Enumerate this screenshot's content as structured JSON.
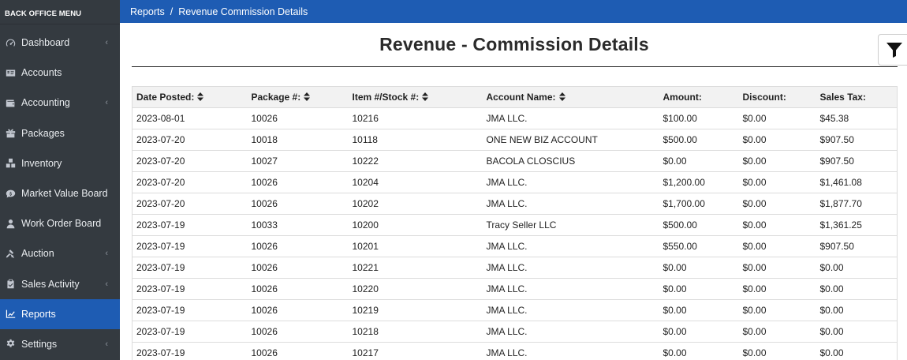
{
  "sidebar": {
    "title": "BACK OFFICE MENU",
    "items": [
      {
        "label": "Dashboard",
        "icon": "gauge-icon",
        "chevron": true
      },
      {
        "label": "Accounts",
        "icon": "id-card-icon",
        "chevron": false
      },
      {
        "label": "Accounting",
        "icon": "wallet-icon",
        "chevron": true
      },
      {
        "label": "Packages",
        "icon": "gift-icon",
        "chevron": false
      },
      {
        "label": "Inventory",
        "icon": "boxes-icon",
        "chevron": false
      },
      {
        "label": "Market Value Board",
        "icon": "comment-dollar-icon",
        "chevron": false
      },
      {
        "label": "Work Order Board",
        "icon": "user-icon",
        "chevron": false
      },
      {
        "label": "Auction",
        "icon": "gavel-icon",
        "chevron": true
      },
      {
        "label": "Sales Activity",
        "icon": "clipboard-check-icon",
        "chevron": true
      },
      {
        "label": "Reports",
        "icon": "chart-line-icon",
        "chevron": false,
        "active": true
      },
      {
        "label": "Settings",
        "icon": "gear-icon",
        "chevron": true
      }
    ]
  },
  "breadcrumb": {
    "parent": "Reports",
    "separator": "/",
    "current": "Revenue Commission Details"
  },
  "page": {
    "title": "Revenue - Commission Details"
  },
  "table": {
    "columns": [
      "Date Posted:",
      "Package #:",
      "Item #/Stock #:",
      "Account Name:",
      "Amount:",
      "Discount:",
      "Sales Tax:"
    ],
    "rows": [
      [
        "2023-08-01",
        "10026",
        "10216",
        "JMA LLC.",
        "$100.00",
        "$0.00",
        "$45.38"
      ],
      [
        "2023-07-20",
        "10018",
        "10118",
        "ONE NEW BIZ ACCOUNT",
        "$500.00",
        "$0.00",
        "$907.50"
      ],
      [
        "2023-07-20",
        "10027",
        "10222",
        "BACOLA CLOSCIUS",
        "$0.00",
        "$0.00",
        "$907.50"
      ],
      [
        "2023-07-20",
        "10026",
        "10204",
        "JMA LLC.",
        "$1,200.00",
        "$0.00",
        "$1,461.08"
      ],
      [
        "2023-07-20",
        "10026",
        "10202",
        "JMA LLC.",
        "$1,700.00",
        "$0.00",
        "$1,877.70"
      ],
      [
        "2023-07-19",
        "10033",
        "10200",
        "Tracy Seller LLC",
        "$500.00",
        "$0.00",
        "$1,361.25"
      ],
      [
        "2023-07-19",
        "10026",
        "10201",
        "JMA LLC.",
        "$550.00",
        "$0.00",
        "$907.50"
      ],
      [
        "2023-07-19",
        "10026",
        "10221",
        "JMA LLC.",
        "$0.00",
        "$0.00",
        "$0.00"
      ],
      [
        "2023-07-19",
        "10026",
        "10220",
        "JMA LLC.",
        "$0.00",
        "$0.00",
        "$0.00"
      ],
      [
        "2023-07-19",
        "10026",
        "10219",
        "JMA LLC.",
        "$0.00",
        "$0.00",
        "$0.00"
      ],
      [
        "2023-07-19",
        "10026",
        "10218",
        "JMA LLC.",
        "$0.00",
        "$0.00",
        "$0.00"
      ],
      [
        "2023-07-19",
        "10026",
        "10217",
        "JMA LLC.",
        "$0.00",
        "$0.00",
        "$0.00"
      ]
    ]
  },
  "colors": {
    "sidebar_bg": "#343a40",
    "accent": "#1e5cb3"
  }
}
